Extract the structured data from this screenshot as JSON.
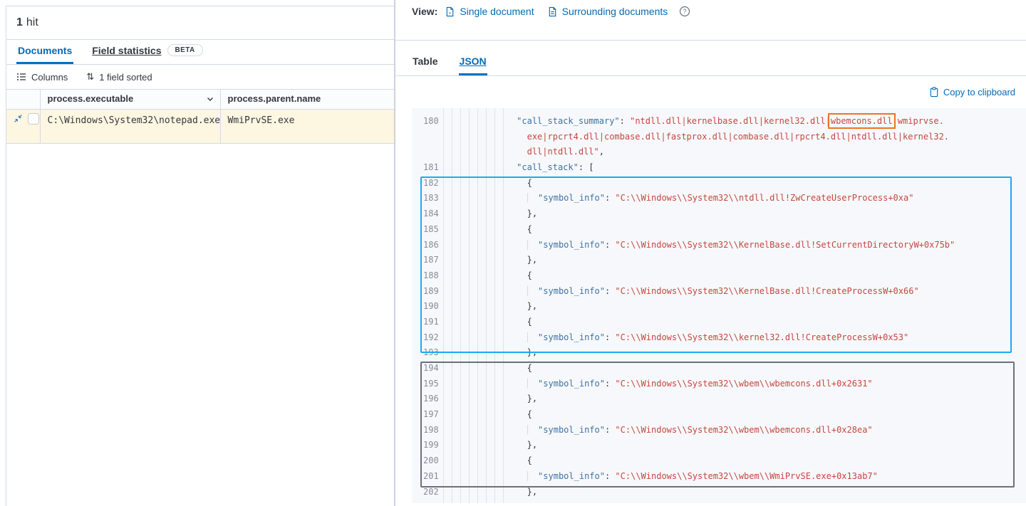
{
  "colors": {
    "accent": "#006bb8",
    "tab_underline": "#0071c2",
    "row_highlight": "#fdf6e0",
    "json_key": "#3c73a5",
    "json_string": "#c5473f",
    "box_blue": "#1ba9f5",
    "box_gray": "#69707d",
    "box_orange": "#f0731e"
  },
  "left_panel": {
    "hits_count": "1",
    "hits_label": "hit",
    "tabs": [
      {
        "label": "Documents",
        "active": true
      },
      {
        "label": "Field statistics",
        "active": false,
        "badge": "BETA"
      }
    ],
    "toolbar": {
      "columns_label": "Columns",
      "sort_glyph": "⇅",
      "sorted_label": "1 field sorted"
    },
    "table": {
      "columns": [
        {
          "label": "process.executable"
        },
        {
          "label": "process.parent.name"
        }
      ],
      "rows": [
        {
          "process_executable": "C:\\Windows\\System32\\notepad.exe",
          "process_parent_name": "WmiPrvSE.exe"
        }
      ]
    }
  },
  "right_panel": {
    "view_bar": {
      "label": "View:",
      "links": [
        {
          "label": "Single document"
        },
        {
          "label": "Surrounding documents"
        }
      ]
    },
    "tabs": [
      {
        "label": "Table",
        "active": false
      },
      {
        "label": "JSON",
        "active": true
      }
    ],
    "copy_button": "Copy to clipboard",
    "code": {
      "highlighted_token": "wbemcons.dll",
      "rows": [
        {
          "n": "180",
          "tokens": [
            {
              "t": "ind",
              "v": "              "
            },
            {
              "t": "key",
              "v": "\"call_stack_summary\""
            },
            {
              "t": "p",
              "v": ": "
            },
            {
              "t": "str",
              "v": "\"ntdll.dll|kernelbase.dll|kernel32.dll|"
            },
            {
              "t": "box",
              "v": "wbemcons.dll"
            },
            {
              "t": "str",
              "v": "|wmiprvse."
            }
          ]
        },
        {
          "n": "",
          "tokens": [
            {
              "t": "ind",
              "v": "                "
            },
            {
              "t": "str",
              "v": "exe|rpcrt4.dll|combase.dll|fastprox.dll|combase.dll|rpcrt4.dll|ntdll.dll|kernel32."
            }
          ]
        },
        {
          "n": "",
          "tokens": [
            {
              "t": "ind",
              "v": "                "
            },
            {
              "t": "str",
              "v": "dll|ntdll.dll\""
            },
            {
              "t": "p",
              "v": ","
            }
          ]
        },
        {
          "n": "181",
          "tokens": [
            {
              "t": "ind",
              "v": "              "
            },
            {
              "t": "key",
              "v": "\"call_stack\""
            },
            {
              "t": "p",
              "v": ": ["
            }
          ]
        },
        {
          "n": "182",
          "tokens": [
            {
              "t": "ind",
              "v": "                "
            },
            {
              "t": "p",
              "v": "{"
            }
          ]
        },
        {
          "n": "183",
          "tokens": [
            {
              "t": "ind",
              "v": "                "
            },
            {
              "t": "g",
              "v": "  "
            },
            {
              "t": "key",
              "v": "\"symbol_info\""
            },
            {
              "t": "p",
              "v": ": "
            },
            {
              "t": "str",
              "v": "\"C:\\\\Windows\\\\System32\\\\ntdll.dll!ZwCreateUserProcess+0xa\""
            }
          ]
        },
        {
          "n": "184",
          "tokens": [
            {
              "t": "ind",
              "v": "                "
            },
            {
              "t": "p",
              "v": "},"
            }
          ]
        },
        {
          "n": "185",
          "tokens": [
            {
              "t": "ind",
              "v": "                "
            },
            {
              "t": "p",
              "v": "{"
            }
          ]
        },
        {
          "n": "186",
          "tokens": [
            {
              "t": "ind",
              "v": "                "
            },
            {
              "t": "g",
              "v": "  "
            },
            {
              "t": "key",
              "v": "\"symbol_info\""
            },
            {
              "t": "p",
              "v": ": "
            },
            {
              "t": "str",
              "v": "\"C:\\\\Windows\\\\System32\\\\KernelBase.dll!SetCurrentDirectoryW+0x75b\""
            }
          ]
        },
        {
          "n": "187",
          "tokens": [
            {
              "t": "ind",
              "v": "                "
            },
            {
              "t": "p",
              "v": "},"
            }
          ]
        },
        {
          "n": "188",
          "tokens": [
            {
              "t": "ind",
              "v": "                "
            },
            {
              "t": "p",
              "v": "{"
            }
          ]
        },
        {
          "n": "189",
          "tokens": [
            {
              "t": "ind",
              "v": "                "
            },
            {
              "t": "g",
              "v": "  "
            },
            {
              "t": "key",
              "v": "\"symbol_info\""
            },
            {
              "t": "p",
              "v": ": "
            },
            {
              "t": "str",
              "v": "\"C:\\\\Windows\\\\System32\\\\KernelBase.dll!CreateProcessW+0x66\""
            }
          ]
        },
        {
          "n": "190",
          "tokens": [
            {
              "t": "ind",
              "v": "                "
            },
            {
              "t": "p",
              "v": "},"
            }
          ]
        },
        {
          "n": "191",
          "tokens": [
            {
              "t": "ind",
              "v": "                "
            },
            {
              "t": "p",
              "v": "{"
            }
          ]
        },
        {
          "n": "192",
          "tokens": [
            {
              "t": "ind",
              "v": "                "
            },
            {
              "t": "g",
              "v": "  "
            },
            {
              "t": "key",
              "v": "\"symbol_info\""
            },
            {
              "t": "p",
              "v": ": "
            },
            {
              "t": "str",
              "v": "\"C:\\\\Windows\\\\System32\\\\kernel32.dll!CreateProcessW+0x53\""
            }
          ]
        },
        {
          "n": "193",
          "tokens": [
            {
              "t": "ind",
              "v": "                "
            },
            {
              "t": "p",
              "v": "},"
            }
          ]
        },
        {
          "n": "194",
          "tokens": [
            {
              "t": "ind",
              "v": "                "
            },
            {
              "t": "p",
              "v": "{"
            }
          ]
        },
        {
          "n": "195",
          "tokens": [
            {
              "t": "ind",
              "v": "                "
            },
            {
              "t": "g",
              "v": "  "
            },
            {
              "t": "key",
              "v": "\"symbol_info\""
            },
            {
              "t": "p",
              "v": ": "
            },
            {
              "t": "str",
              "v": "\"C:\\\\Windows\\\\System32\\\\wbem\\\\wbemcons.dll+0x2631\""
            }
          ]
        },
        {
          "n": "196",
          "tokens": [
            {
              "t": "ind",
              "v": "                "
            },
            {
              "t": "p",
              "v": "},"
            }
          ]
        },
        {
          "n": "197",
          "tokens": [
            {
              "t": "ind",
              "v": "                "
            },
            {
              "t": "p",
              "v": "{"
            }
          ]
        },
        {
          "n": "198",
          "tokens": [
            {
              "t": "ind",
              "v": "                "
            },
            {
              "t": "g",
              "v": "  "
            },
            {
              "t": "key",
              "v": "\"symbol_info\""
            },
            {
              "t": "p",
              "v": ": "
            },
            {
              "t": "str",
              "v": "\"C:\\\\Windows\\\\System32\\\\wbem\\\\wbemcons.dll+0x28ea\""
            }
          ]
        },
        {
          "n": "199",
          "tokens": [
            {
              "t": "ind",
              "v": "                "
            },
            {
              "t": "p",
              "v": "},"
            }
          ]
        },
        {
          "n": "200",
          "tokens": [
            {
              "t": "ind",
              "v": "                "
            },
            {
              "t": "p",
              "v": "{"
            }
          ]
        },
        {
          "n": "201",
          "tokens": [
            {
              "t": "ind",
              "v": "                "
            },
            {
              "t": "g",
              "v": "  "
            },
            {
              "t": "key",
              "v": "\"symbol_info\""
            },
            {
              "t": "p",
              "v": ": "
            },
            {
              "t": "str",
              "v": "\"C:\\\\Windows\\\\System32\\\\wbem\\\\WmiPrvSE.exe+0x13ab7\""
            }
          ]
        },
        {
          "n": "202",
          "tokens": [
            {
              "t": "ind",
              "v": "                "
            },
            {
              "t": "p",
              "v": "},"
            }
          ]
        }
      ]
    }
  }
}
